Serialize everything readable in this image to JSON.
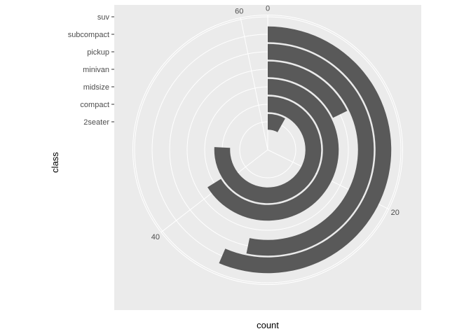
{
  "chart_data": {
    "type": "bar",
    "coord": "polar",
    "categories": [
      "2seater",
      "compact",
      "midsize",
      "minivan",
      "pickup",
      "subcompact",
      "suv"
    ],
    "values": [
      5,
      47,
      41,
      11,
      33,
      35,
      62
    ],
    "xlabel": "class",
    "ylabel": "count",
    "theta_axis_ticks": [
      "0",
      "20",
      "40",
      "60"
    ],
    "theta_axis_max": 62,
    "bar_color": "#595959",
    "panel_color": "#ebebeb",
    "grid_color": "#ffffff",
    "grid": true
  }
}
